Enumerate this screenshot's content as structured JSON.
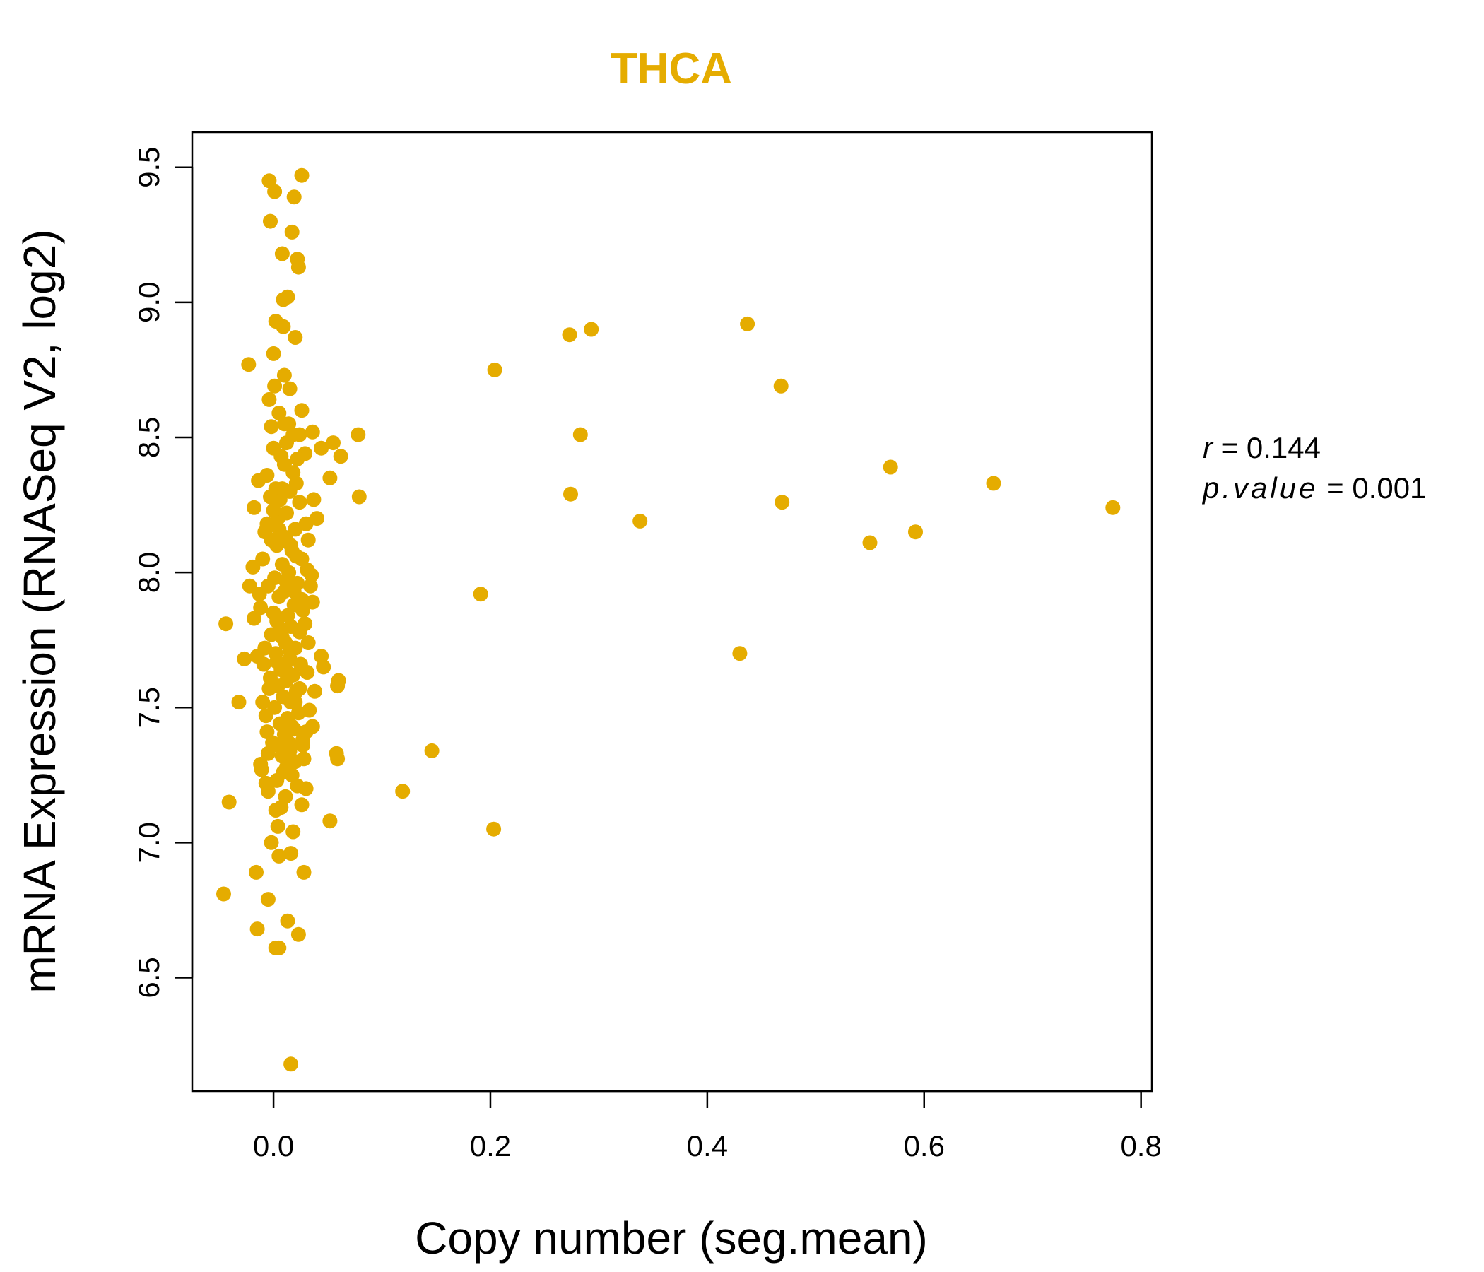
{
  "chart_data": {
    "type": "scatter",
    "title": "THCA",
    "xlabel": "Copy number (seg.mean)",
    "ylabel": "mRNA Expression (RNASeq V2, log2)",
    "xlim": [
      -0.075,
      0.81
    ],
    "ylim": [
      6.08,
      9.63
    ],
    "xticks": [
      "0.0",
      "0.2",
      "0.4",
      "0.6",
      "0.8"
    ],
    "yticks": [
      "6.5",
      "7.0",
      "7.5",
      "8.0",
      "8.5",
      "9.0",
      "9.5"
    ],
    "grid": false,
    "color": "#E5AC00",
    "stats": {
      "r_label": "r",
      "r_value": "0.144",
      "p_label": "p.value",
      "p_value": "0.001"
    },
    "points": [
      [
        0.204,
        8.75
      ],
      [
        0.293,
        8.9
      ],
      [
        0.273,
        8.88
      ],
      [
        0.437,
        8.92
      ],
      [
        0.468,
        8.69
      ],
      [
        0.283,
        8.51
      ],
      [
        0.569,
        8.39
      ],
      [
        0.664,
        8.33
      ],
      [
        0.774,
        8.24
      ],
      [
        0.469,
        8.26
      ],
      [
        0.274,
        8.29
      ],
      [
        0.338,
        8.19
      ],
      [
        0.592,
        8.15
      ],
      [
        0.55,
        8.11
      ],
      [
        0.191,
        7.92
      ],
      [
        0.43,
        7.7
      ],
      [
        0.146,
        7.34
      ],
      [
        0.119,
        7.19
      ],
      [
        0.203,
        7.05
      ],
      [
        0.078,
        8.51
      ],
      [
        0.079,
        8.28
      ],
      [
        0.062,
        8.43
      ],
      [
        0.055,
        8.48
      ],
      [
        0.044,
        8.46
      ],
      [
        0.052,
        8.35
      ],
      [
        0.04,
        8.2
      ],
      [
        0.037,
        8.27
      ],
      [
        0.036,
        8.52
      ],
      [
        0.032,
        8.12
      ],
      [
        0.035,
        7.99
      ],
      [
        0.036,
        7.89
      ],
      [
        0.044,
        7.69
      ],
      [
        0.046,
        7.65
      ],
      [
        0.06,
        7.6
      ],
      [
        0.059,
        7.58
      ],
      [
        0.038,
        7.56
      ],
      [
        0.036,
        7.43
      ],
      [
        0.058,
        7.33
      ],
      [
        0.059,
        7.31
      ],
      [
        0.052,
        7.08
      ],
      [
        0.028,
        6.89
      ],
      [
        0.03,
        7.2
      ],
      [
        0.026,
        7.14
      ],
      [
        0.027,
        7.36
      ],
      [
        0.026,
        8.6
      ],
      [
        0.024,
        8.51
      ],
      [
        0.026,
        9.47
      ],
      [
        0.019,
        9.39
      ],
      [
        0.017,
        9.26
      ],
      [
        0.022,
        9.16
      ],
      [
        0.023,
        9.13
      ],
      [
        0.013,
        9.02
      ],
      [
        0.009,
        9.01
      ],
      [
        0.009,
        8.91
      ],
      [
        0.02,
        8.87
      ],
      [
        0.002,
        8.93
      ],
      [
        0.0,
        8.81
      ],
      [
        0.015,
        8.68
      ],
      [
        0.01,
        8.73
      ],
      [
        0.001,
        8.69
      ],
      [
        0.008,
        9.18
      ],
      [
        0.001,
        9.41
      ],
      [
        -0.004,
        9.45
      ],
      [
        -0.003,
        9.3
      ],
      [
        -0.023,
        8.77
      ],
      [
        -0.004,
        8.64
      ],
      [
        0.005,
        8.59
      ],
      [
        0.01,
        8.55
      ],
      [
        -0.002,
        8.54
      ],
      [
        0.012,
        8.48
      ],
      [
        0.0,
        8.46
      ],
      [
        -0.014,
        8.34
      ],
      [
        0.002,
        8.31
      ],
      [
        -0.018,
        8.24
      ],
      [
        -0.006,
        8.18
      ],
      [
        -0.019,
        8.02
      ],
      [
        -0.022,
        7.95
      ],
      [
        -0.018,
        7.83
      ],
      [
        -0.044,
        7.81
      ],
      [
        -0.027,
        7.68
      ],
      [
        -0.015,
        7.69
      ],
      [
        -0.032,
        7.52
      ],
      [
        -0.006,
        7.41
      ],
      [
        -0.012,
        7.29
      ],
      [
        -0.007,
        7.22
      ],
      [
        -0.041,
        7.15
      ],
      [
        -0.005,
        7.19
      ],
      [
        0.002,
        7.12
      ],
      [
        0.004,
        7.06
      ],
      [
        -0.002,
        7.0
      ],
      [
        0.005,
        6.95
      ],
      [
        0.016,
        6.96
      ],
      [
        0.018,
        7.04
      ],
      [
        -0.016,
        6.89
      ],
      [
        -0.046,
        6.81
      ],
      [
        -0.005,
        6.79
      ],
      [
        -0.015,
        6.68
      ],
      [
        0.013,
        6.71
      ],
      [
        0.023,
        6.66
      ],
      [
        0.002,
        6.61
      ],
      [
        0.005,
        6.61
      ],
      [
        0.016,
        6.18
      ],
      [
        0.01,
        8.4
      ],
      [
        0.018,
        8.37
      ],
      [
        0.021,
        8.33
      ],
      [
        0.015,
        8.3
      ],
      [
        0.006,
        8.27
      ],
      [
        0.024,
        8.26
      ],
      [
        0.012,
        8.22
      ],
      [
        0.004,
        8.2
      ],
      [
        0.02,
        8.16
      ],
      [
        0.011,
        8.13
      ],
      [
        0.003,
        8.1
      ],
      [
        0.017,
        8.08
      ],
      [
        0.026,
        8.05
      ],
      [
        0.008,
        8.03
      ],
      [
        0.014,
        8.0
      ],
      [
        0.001,
        7.98
      ],
      [
        0.022,
        7.96
      ],
      [
        0.01,
        7.93
      ],
      [
        0.005,
        7.91
      ],
      [
        0.019,
        7.88
      ],
      [
        0.027,
        7.86
      ],
      [
        0.013,
        7.84
      ],
      [
        0.003,
        7.82
      ],
      [
        0.016,
        7.8
      ],
      [
        0.024,
        7.78
      ],
      [
        0.008,
        7.76
      ],
      [
        0.011,
        7.74
      ],
      [
        0.02,
        7.72
      ],
      [
        0.002,
        7.7
      ],
      [
        0.015,
        7.68
      ],
      [
        0.025,
        7.66
      ],
      [
        0.007,
        7.64
      ],
      [
        0.018,
        7.62
      ],
      [
        0.012,
        7.6
      ],
      [
        0.004,
        7.58
      ],
      [
        0.021,
        7.56
      ],
      [
        0.009,
        7.54
      ],
      [
        0.016,
        7.52
      ],
      [
        0.001,
        7.5
      ],
      [
        0.023,
        7.48
      ],
      [
        0.013,
        7.46
      ],
      [
        0.006,
        7.44
      ],
      [
        0.019,
        7.42
      ],
      [
        0.01,
        7.4
      ],
      [
        0.027,
        7.38
      ],
      [
        0.004,
        7.36
      ],
      [
        0.015,
        7.34
      ],
      [
        0.008,
        7.32
      ],
      [
        0.02,
        7.3
      ],
      [
        0.012,
        7.28
      ],
      [
        0.017,
        7.25
      ],
      [
        0.003,
        7.23
      ],
      [
        0.022,
        7.21
      ],
      [
        0.011,
        7.17
      ],
      [
        0.007,
        7.13
      ],
      [
        -0.003,
        8.28
      ],
      [
        -0.008,
        8.15
      ],
      [
        -0.01,
        8.05
      ],
      [
        -0.005,
        7.95
      ],
      [
        -0.012,
        7.87
      ],
      [
        -0.002,
        7.77
      ],
      [
        -0.009,
        7.66
      ],
      [
        -0.004,
        7.57
      ],
      [
        -0.007,
        7.47
      ],
      [
        -0.001,
        7.37
      ],
      [
        -0.011,
        7.27
      ],
      [
        -0.006,
        8.36
      ],
      [
        -0.002,
        8.12
      ],
      [
        -0.013,
        7.92
      ],
      [
        -0.008,
        7.72
      ],
      [
        -0.003,
        7.61
      ],
      [
        -0.01,
        7.52
      ],
      [
        -0.005,
        7.33
      ],
      [
        0.0,
        8.23
      ],
      [
        0.0,
        7.85
      ],
      [
        0.029,
        8.44
      ],
      [
        0.03,
        8.18
      ],
      [
        0.031,
        8.01
      ],
      [
        0.029,
        7.81
      ],
      [
        0.031,
        7.63
      ],
      [
        0.033,
        7.49
      ],
      [
        0.03,
        7.41
      ],
      [
        0.028,
        7.31
      ],
      [
        0.032,
        7.74
      ],
      [
        0.034,
        7.95
      ],
      [
        0.014,
        8.55
      ],
      [
        0.018,
        8.51
      ],
      [
        0.007,
        8.43
      ],
      [
        0.022,
        8.42
      ],
      [
        0.016,
        8.1
      ],
      [
        0.019,
        7.93
      ],
      [
        0.006,
        7.79
      ],
      [
        0.024,
        7.57
      ],
      [
        0.017,
        7.43
      ],
      [
        0.009,
        7.26
      ],
      [
        0.013,
        7.63
      ],
      [
        0.011,
        7.97
      ],
      [
        0.005,
        8.16
      ],
      [
        0.02,
        7.52
      ],
      [
        0.014,
        7.37
      ],
      [
        0.008,
        8.31
      ],
      [
        0.026,
        7.9
      ],
      [
        0.003,
        7.67
      ],
      [
        0.021,
        8.06
      ],
      [
        0.015,
        7.71
      ]
    ]
  }
}
